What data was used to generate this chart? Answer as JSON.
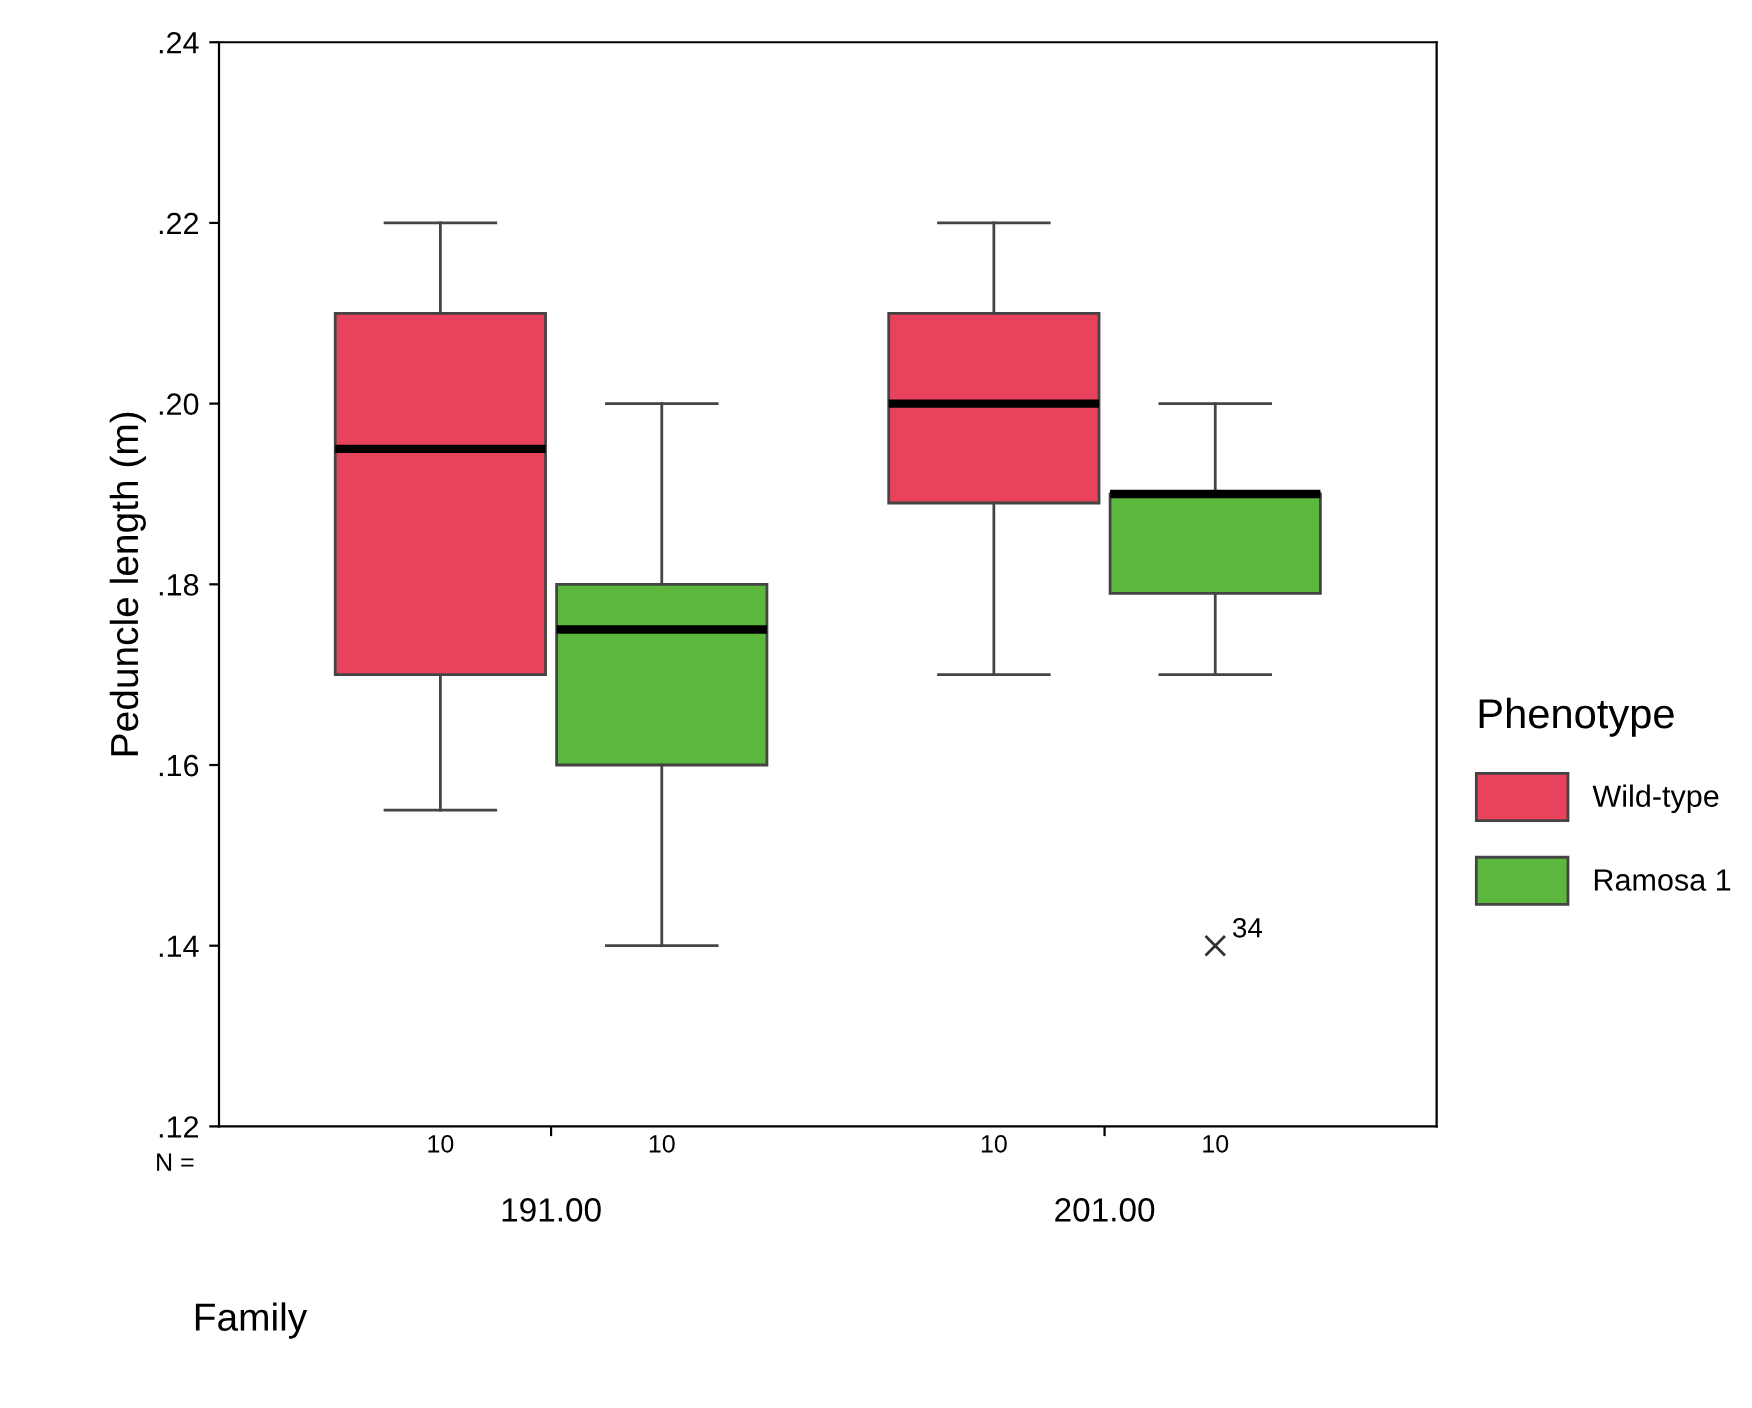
{
  "chart_data": {
    "type": "box",
    "xlabel": "Family",
    "ylabel": "Peduncle length (m)",
    "legend_title": "Phenotype",
    "legend": "right",
    "categories": [
      "191.00",
      "201.00"
    ],
    "ylim": [
      0.12,
      0.24
    ],
    "yticks": [
      {
        "value": 0.12,
        "label": ".12"
      },
      {
        "value": 0.14,
        "label": ".14"
      },
      {
        "value": 0.16,
        "label": ".16"
      },
      {
        "value": 0.18,
        "label": ".18"
      },
      {
        "value": 0.2,
        "label": ".20"
      },
      {
        "value": 0.22,
        "label": ".22"
      },
      {
        "value": 0.24,
        "label": ".24"
      }
    ],
    "series": [
      {
        "name": "Wild-type",
        "color": "#e8425c",
        "boxes": [
          {
            "low": 0.155,
            "q1": 0.17,
            "median": 0.195,
            "q3": 0.21,
            "high": 0.22
          },
          {
            "low": 0.17,
            "q1": 0.189,
            "median": 0.2,
            "q3": 0.21,
            "high": 0.22
          }
        ]
      },
      {
        "name": "Ramosa 1",
        "color": "#5cb83c",
        "boxes": [
          {
            "low": 0.14,
            "q1": 0.16,
            "median": 0.175,
            "q3": 0.18,
            "high": 0.2
          },
          {
            "low": 0.17,
            "q1": 0.179,
            "median": 0.19,
            "q3": 0.19,
            "high": 0.2,
            "outliers": [
              0.14
            ]
          }
        ]
      }
    ],
    "annotations": [
      "N =",
      "10",
      "10",
      "10",
      "10",
      "34"
    ]
  }
}
